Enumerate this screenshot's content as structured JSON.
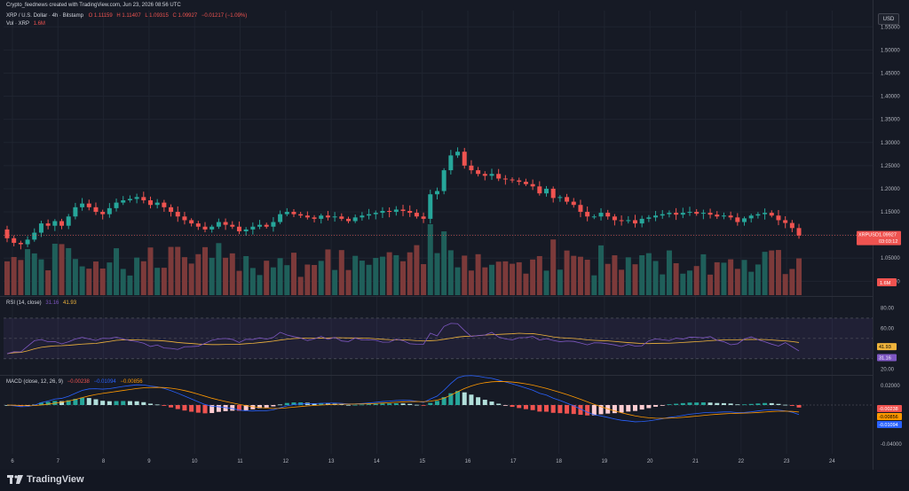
{
  "header": {
    "credit": "Crypto_feednews created with TradingView.com, Jun 23, 2026 08:56 UTC",
    "symbol_line": "XRP / U.S. Dollar · 4h · Bitstamp",
    "ohlc": {
      "o": "O 1.11159",
      "h": "H 1.11407",
      "l": "L 1.09315",
      "c": "C 1.09927",
      "chg": "−0.01217 (−1.09%)"
    },
    "vol_label": "Vol · XRP",
    "vol_value": "1.6M",
    "currency_button": "USD"
  },
  "colors": {
    "bg": "#161a25",
    "up": "#26a69a",
    "down": "#ef5350",
    "vol_up": "#1f5f5a",
    "vol_down": "#7c3a3a",
    "rsi": "#7e57c2",
    "rsi_ma": "#f0b43c",
    "macd": "#2962ff",
    "signal": "#ff9800",
    "text": "#b2b5be",
    "grid": "#1f2430"
  },
  "price_axis": {
    "ticks": [
      "1.55000",
      "1.50000",
      "1.45000",
      "1.40000",
      "1.35000",
      "1.30000",
      "1.25000",
      "1.20000",
      "1.15000",
      "1.10000",
      "1.05000",
      "1.00000"
    ],
    "ymin": 0.97,
    "ymax": 1.585
  },
  "rsi_axis": {
    "ticks": [
      "80.00",
      "60.00",
      "20.00"
    ]
  },
  "macd_axis": {
    "ticks": [
      "0.02000",
      "-0.04000"
    ]
  },
  "x_axis": {
    "ticks": [
      "6",
      "7",
      "8",
      "9",
      "10",
      "11",
      "12",
      "13",
      "14",
      "15",
      "16",
      "17",
      "18",
      "19",
      "20",
      "21",
      "22",
      "23",
      "24"
    ]
  },
  "labels": {
    "current_price": {
      "symbol": "XRPUSD",
      "price": "1.09927",
      "countdown": "03:03:12"
    },
    "volume": "1.6M",
    "rsi_value": "31.16",
    "rsi_ma_value": "41.93",
    "macd_hist": "-0.00238",
    "macd_signal": "-0.00856",
    "macd_line": "-0.01094"
  },
  "rsi": {
    "title": "RSI (14, close)",
    "v1": "31.16",
    "v2": "41.93",
    "upper": 70,
    "lower": 30
  },
  "macd": {
    "title": "MACD (close, 12, 26, 9)",
    "v1": "−0.00238",
    "v2": "−0.01094",
    "v3": "−0.00856"
  },
  "chart_data": {
    "type": "candlestick",
    "symbol": "XRPUSD",
    "timeframe": "4h",
    "closes": [
      1.093,
      1.083,
      1.08,
      1.09,
      1.105,
      1.125,
      1.12,
      1.13,
      1.12,
      1.14,
      1.16,
      1.168,
      1.16,
      1.15,
      1.145,
      1.158,
      1.17,
      1.175,
      1.178,
      1.182,
      1.175,
      1.165,
      1.17,
      1.16,
      1.15,
      1.14,
      1.132,
      1.125,
      1.118,
      1.112,
      1.118,
      1.128,
      1.122,
      1.118,
      1.108,
      1.112,
      1.118,
      1.122,
      1.118,
      1.128,
      1.145,
      1.15,
      1.145,
      1.142,
      1.138,
      1.135,
      1.142,
      1.138,
      1.14,
      1.135,
      1.13,
      1.138,
      1.142,
      1.145,
      1.148,
      1.152,
      1.15,
      1.155,
      1.152,
      1.148,
      1.14,
      1.135,
      1.188,
      1.195,
      1.24,
      1.272,
      1.28,
      1.25,
      1.24,
      1.232,
      1.228,
      1.232,
      1.222,
      1.22,
      1.218,
      1.215,
      1.21,
      1.205,
      1.19,
      1.2,
      1.18,
      1.182,
      1.172,
      1.165,
      1.15,
      1.14,
      1.14,
      1.148,
      1.14,
      1.132,
      1.13,
      1.132,
      1.125,
      1.135,
      1.138,
      1.142,
      1.145,
      1.148,
      1.144,
      1.148,
      1.15,
      1.146,
      1.148,
      1.144,
      1.14,
      1.142,
      1.138,
      1.128,
      1.136,
      1.142,
      1.145,
      1.148,
      1.142,
      1.132,
      1.126,
      1.115,
      1.099
    ]
  }
}
